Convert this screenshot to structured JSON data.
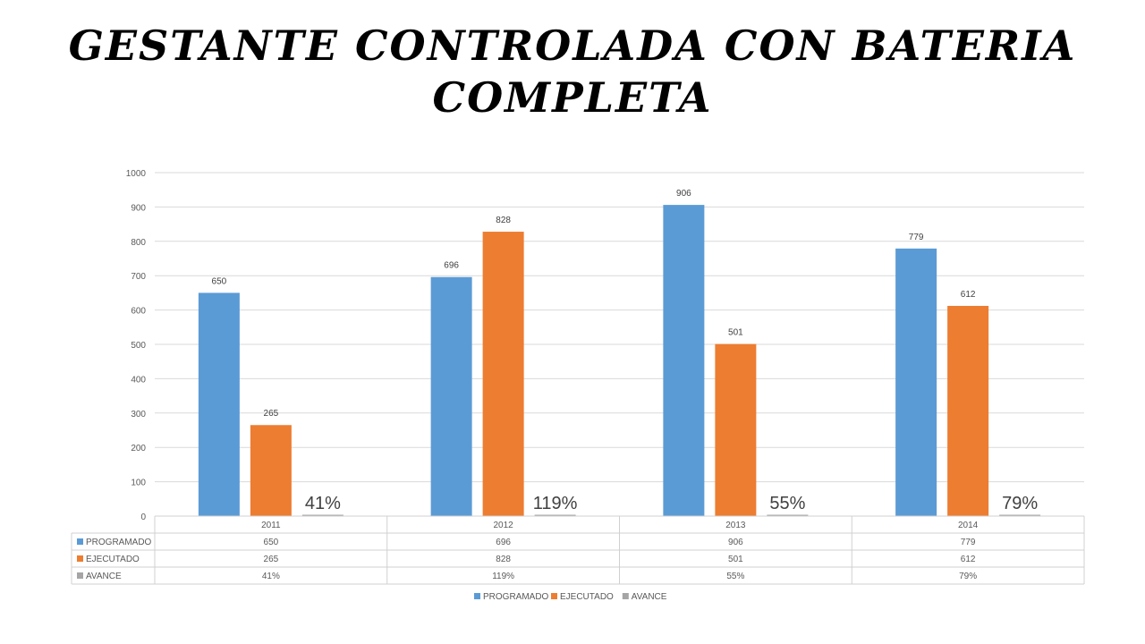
{
  "page": {
    "title_line1": "Gestante controlada con bateria",
    "title_line2": "completa"
  },
  "chart_data": {
    "type": "bar",
    "categories": [
      "2011",
      "2012",
      "2013",
      "2014"
    ],
    "series": [
      {
        "name": "PROGRAMADO",
        "values": [
          650,
          696,
          906,
          779
        ],
        "color": "#5b9bd5"
      },
      {
        "name": "EJECUTADO",
        "values": [
          265,
          828,
          501,
          612
        ],
        "color": "#ed7d31"
      },
      {
        "name": "AVANCE",
        "values": [
          0.41,
          1.19,
          0.55,
          0.79
        ],
        "labels": [
          "41%",
          "119%",
          "55%",
          "79%"
        ],
        "color": "#a5a5a5"
      }
    ],
    "ylim": [
      0,
      1000
    ],
    "yticks": [
      0,
      100,
      200,
      300,
      400,
      500,
      600,
      700,
      800,
      900,
      1000
    ],
    "grid": true,
    "data_table": true,
    "legend": "bottom",
    "avance_labels": [
      "41%",
      "119%",
      "55%",
      "79%"
    ]
  }
}
